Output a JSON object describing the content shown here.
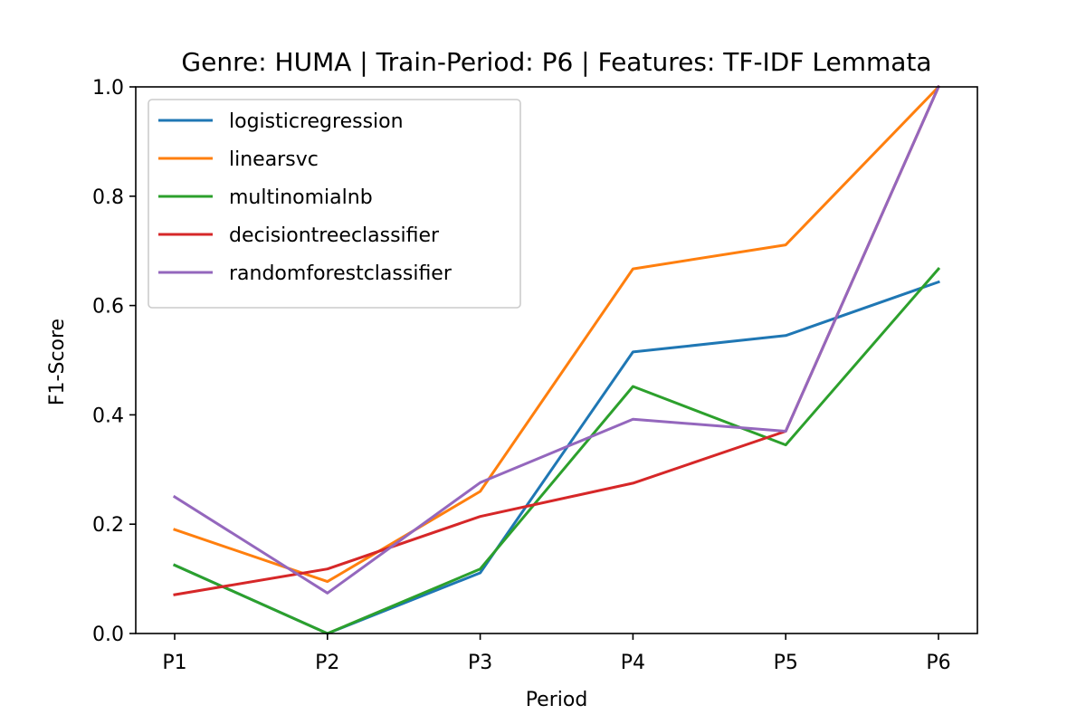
{
  "chart_data": {
    "type": "line",
    "title": "Genre: HUMA | Train-Period: P6 | Features: TF-IDF Lemmata",
    "xlabel": "Period",
    "ylabel": "F1-Score",
    "categories": [
      "P1",
      "P2",
      "P3",
      "P4",
      "P5",
      "P6"
    ],
    "ylim": [
      0.0,
      1.0
    ],
    "yticks": [
      "0.0",
      "0.2",
      "0.4",
      "0.6",
      "0.8",
      "1.0"
    ],
    "grid": false,
    "legend_position": "upper-left",
    "series": [
      {
        "name": "logisticregression",
        "color": "#1f77b4",
        "values": [
          0.125,
          0.0,
          0.111,
          0.515,
          0.545,
          0.643
        ]
      },
      {
        "name": "linearsvc",
        "color": "#ff7f0e",
        "values": [
          0.19,
          0.095,
          0.26,
          0.667,
          0.711,
          1.0
        ]
      },
      {
        "name": "multinomialnb",
        "color": "#2ca02c",
        "values": [
          0.125,
          0.0,
          0.118,
          0.452,
          0.345,
          0.667
        ]
      },
      {
        "name": "decisiontreeclassifier",
        "color": "#d62728",
        "values": [
          0.071,
          0.118,
          0.214,
          0.275,
          0.37,
          1.0
        ]
      },
      {
        "name": "randomforestclassifier",
        "color": "#9467bd",
        "values": [
          0.25,
          0.074,
          0.276,
          0.392,
          0.37,
          1.0
        ]
      }
    ]
  }
}
